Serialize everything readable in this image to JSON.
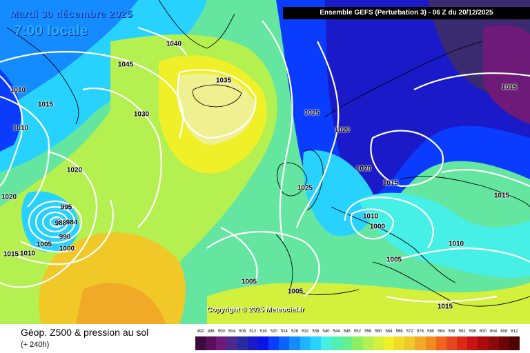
{
  "map": {
    "date": "Mardi 30 décembre 2025",
    "time": "7:00 locale",
    "title": "Ensemble GEFS  (Perturbation 3)  -  06 Z du 20/12/2025",
    "copyright": "Copyright © 2025 Meteociel.fr",
    "isobar_labels": [
      "1040",
      "1045",
      "1035",
      "1030",
      "1025",
      "1020",
      "1015",
      "1010",
      "1010",
      "1015",
      "1020",
      "1020",
      "1025",
      "1020",
      "1015",
      "1015",
      "995",
      "990",
      "988",
      "984",
      "1000",
      "1005",
      "1010",
      "1015",
      "1010",
      "1000",
      "1005",
      "1005",
      "1005",
      "1010",
      "1015"
    ]
  },
  "footer": {
    "title": "Géop. Z500 & pression au sol",
    "subtitle": "(+ 240h)"
  },
  "scale": {
    "ticks": [
      "492",
      "496",
      "500",
      "504",
      "508",
      "512",
      "516",
      "520",
      "524",
      "528",
      "532",
      "536",
      "540",
      "544",
      "548",
      "552",
      "556",
      "560",
      "564",
      "568",
      "572",
      "576",
      "580",
      "584",
      "588",
      "592",
      "596",
      "600",
      "604",
      "608",
      "612"
    ],
    "colors": [
      "#3c0a3c",
      "#5a0f5a",
      "#6e1a78",
      "#4b2a8c",
      "#2a2aa0",
      "#1a1ac8",
      "#0a14e6",
      "#0a3cff",
      "#0a64ff",
      "#148cff",
      "#1eb4ff",
      "#28d2ff",
      "#46f0e6",
      "#50f0b4",
      "#64f08c",
      "#8cf064",
      "#b4f050",
      "#d2f03c",
      "#f0f028",
      "#f0dc28",
      "#f0c828",
      "#f0aa28",
      "#f08c1e",
      "#f0641e",
      "#e6461e",
      "#dc2814",
      "#c81414",
      "#aa0a0a",
      "#8c0a0a",
      "#6e0505",
      "#500000"
    ]
  }
}
